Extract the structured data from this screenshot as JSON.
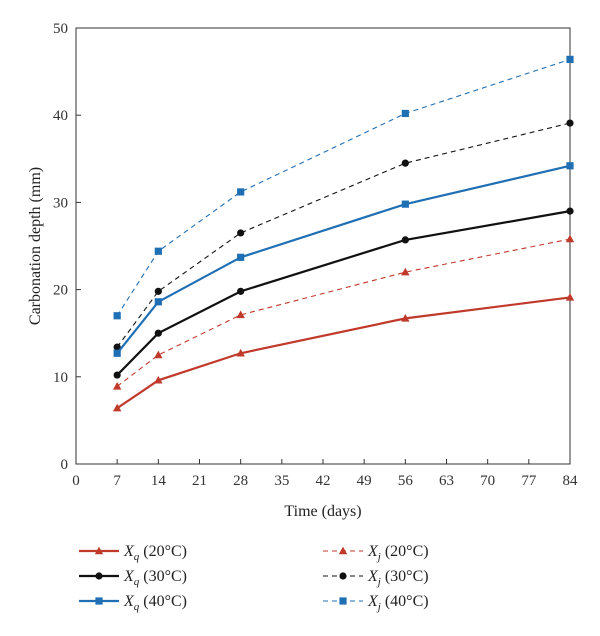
{
  "chart_data": {
    "type": "line",
    "xlabel": "Time (days)",
    "ylabel": "Carbonation depth (mm)",
    "xlim": [
      0,
      84
    ],
    "ylim": [
      0,
      50
    ],
    "x_ticks": [
      0,
      7,
      14,
      21,
      28,
      35,
      42,
      49,
      56,
      63,
      70,
      77,
      84
    ],
    "y_ticks": [
      0,
      10,
      20,
      30,
      40,
      50
    ],
    "x": [
      7,
      14,
      28,
      56,
      84
    ],
    "grid": false,
    "legend_position": "bottom",
    "series": [
      {
        "name": "Xq (20°C)",
        "symbol": "X",
        "sub": "q",
        "temp": " (20°C)",
        "color": "#c0392b",
        "style": "solid",
        "marker": "triangle",
        "values": [
          6.4,
          9.6,
          12.7,
          16.7,
          19.1
        ]
      },
      {
        "name": "Xq (30°C)",
        "symbol": "X",
        "sub": "q",
        "temp": " (30°C)",
        "color": "#111111",
        "style": "solid",
        "marker": "circle",
        "values": [
          10.2,
          15.0,
          19.8,
          25.7,
          29.0
        ]
      },
      {
        "name": "Xq (40°C)",
        "symbol": "X",
        "sub": "q",
        "temp": " (40°C)",
        "color": "#1f6fb5",
        "style": "solid",
        "marker": "square",
        "values": [
          12.7,
          18.6,
          23.7,
          29.8,
          34.2
        ]
      },
      {
        "name": "Xj (20°C)",
        "symbol": "X",
        "sub": "j",
        "temp": " (20°C)",
        "color": "#c0392b",
        "style": "dashed",
        "marker": "triangle",
        "values": [
          8.9,
          12.5,
          17.1,
          22.0,
          25.8
        ]
      },
      {
        "name": "Xj (30°C)",
        "symbol": "X",
        "sub": "j",
        "temp": " (30°C)",
        "color": "#111111",
        "style": "dashed",
        "marker": "circle",
        "values": [
          13.4,
          19.8,
          26.5,
          34.5,
          39.1
        ]
      },
      {
        "name": "Xj (40°C)",
        "symbol": "X",
        "sub": "j",
        "temp": " (40°C)",
        "color": "#1f6fb5",
        "style": "dashed",
        "marker": "square",
        "values": [
          17.0,
          24.4,
          31.2,
          40.2,
          46.4
        ]
      }
    ]
  }
}
